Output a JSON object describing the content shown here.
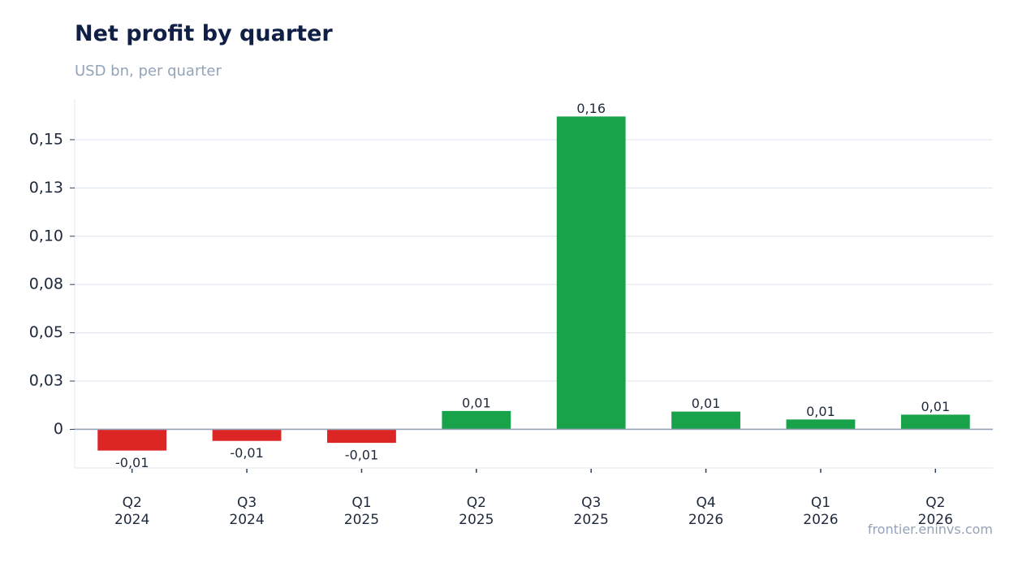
{
  "chart_data": {
    "type": "bar",
    "title": "Net profit by quarter",
    "subtitle": "USD bn, per quarter",
    "categories": [
      [
        "Q2",
        "2024"
      ],
      [
        "Q3",
        "2024"
      ],
      [
        "Q1",
        "2025"
      ],
      [
        "Q2",
        "2025"
      ],
      [
        "Q3",
        "2025"
      ],
      [
        "Q4",
        "2026"
      ],
      [
        "Q1",
        "2026"
      ],
      [
        "Q2",
        "2026"
      ]
    ],
    "values": [
      -0.011,
      -0.006,
      -0.007,
      0.0095,
      0.162,
      0.0092,
      0.0051,
      0.0076
    ],
    "value_labels": [
      "-0,01",
      "-0,01",
      "-0,01",
      "0,01",
      "0,16",
      "0,01",
      "0,01",
      "0,01"
    ],
    "yticks": [
      0,
      0.025,
      0.05,
      0.075,
      0.1,
      0.125,
      0.15
    ],
    "ytick_labels": [
      "0",
      "0,03",
      "0,05",
      "0,08",
      "0,10",
      "0,13",
      "0,15"
    ],
    "ylim": [
      -0.02,
      0.171
    ],
    "grid": true,
    "colors": {
      "positive": "#18a34a",
      "negative": "#dc2626",
      "grid": "#e2e8f0",
      "baseline": "#94a3b8"
    },
    "source": "frontier.eninvs.com"
  }
}
